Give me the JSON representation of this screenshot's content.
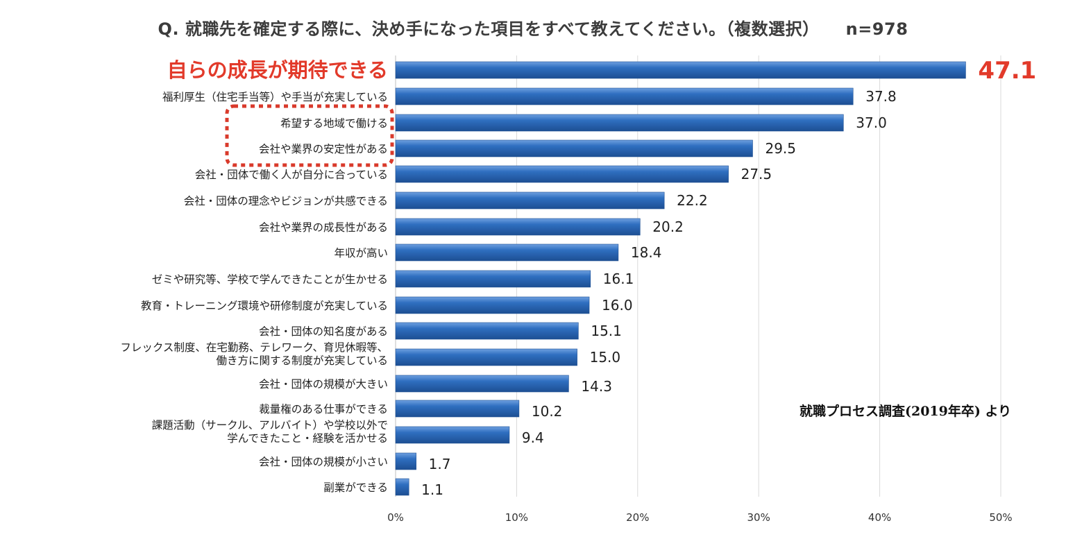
{
  "title": {
    "question": "Q. 就職先を確定する際に、決め手になった項目をすべて教えてください。（複数選択）",
    "sample": "n=978"
  },
  "source": "就職プロセス調査(2019年卒) より",
  "colors": {
    "bar": "#2f6fc0",
    "bar_dark": "#1d4f93",
    "highlight_text": "#e23a2a",
    "dotted_box": "#d93a2b",
    "grid": "#d9d9d9"
  },
  "chart_data": {
    "type": "bar",
    "orientation": "horizontal",
    "title": "Q. 就職先を確定する際に、決め手になった項目をすべて教えてください。（複数選択）",
    "categories": [
      "自らの成長が期待できる",
      "福利厚生（住宅手当等）や手当が充実している",
      "希望する地域で働ける",
      "会社や業界の安定性がある",
      "会社・団体で働く人が自分に合っている",
      "会社・団体の理念やビジョンが共感できる",
      "会社や業界の成長性がある",
      "年収が高い",
      "ゼミや研究等、学校で学んできたことが生かせる",
      "教育・トレーニング環境や研修制度が充実している",
      "会社・団体の知名度がある",
      "フレックス制度、在宅勤務、テレワーク、育児休暇等、\n働き方に関する制度が充実している",
      "会社・団体の規模が大きい",
      "裁量権のある仕事ができる",
      "課題活動（サークル、アルバイト）や学校以外で\n学んできたこと・経験を活かせる",
      "会社・団体の規模が小さい",
      "副業ができる"
    ],
    "values": [
      47.1,
      37.8,
      37.0,
      29.5,
      27.5,
      22.2,
      20.2,
      18.4,
      16.1,
      16.0,
      15.1,
      15.0,
      14.3,
      10.2,
      9.4,
      1.7,
      1.1
    ],
    "value_labels": [
      "47.1",
      "37.8",
      "37.0",
      "29.5",
      "27.5",
      "22.2",
      "20.2",
      "18.4",
      "16.1",
      "16.0",
      "15.1",
      "15.0",
      "14.3",
      "10.2",
      "9.4",
      "1.7",
      "1.1"
    ],
    "highlighted_index": 0,
    "boxed_indices": [
      2,
      3
    ],
    "xlim": [
      0,
      50
    ],
    "xticks": [
      "0%",
      "10%",
      "20%",
      "30%",
      "40%",
      "50%"
    ],
    "grid": true,
    "legend": "none"
  }
}
